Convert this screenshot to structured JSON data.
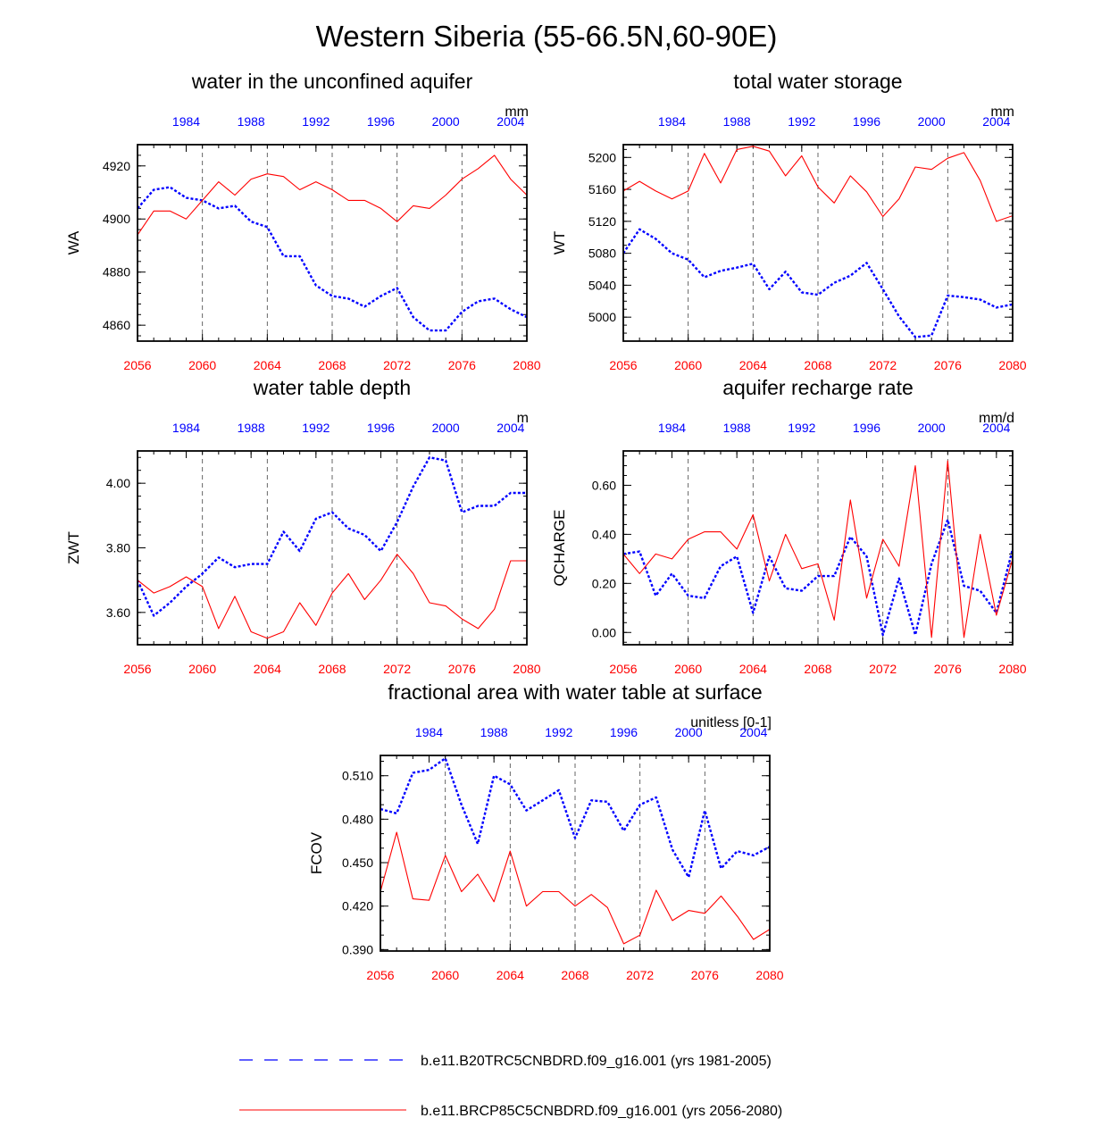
{
  "figure_title": "Western Siberia (55-66.5N,60-90E)",
  "colors": {
    "historical": "#0000ff",
    "future": "#ff0000",
    "axis": "#000000"
  },
  "legend": {
    "items": [
      {
        "label": "b.e11.B20TRC5CNBDRD.f09_g16.001 (yrs 1981-2005)",
        "color": "#0000ff",
        "style": "dashed"
      },
      {
        "label": "b.e11.BRCP85C5CNBDRD.f09_g16.001 (yrs 2056-2080)",
        "color": "#ff0000",
        "style": "solid"
      }
    ]
  },
  "chart_data": [
    {
      "id": "wa",
      "type": "line",
      "title": "water in the unconfined aquifer",
      "ylabel": "WA",
      "units": "mm",
      "ylim": [
        4854,
        4928
      ],
      "yticks": [
        4860,
        4880,
        4900,
        4920
      ],
      "ytick_labels": [
        "4860",
        "4880",
        "4900",
        "4920"
      ],
      "yminor": 5,
      "x_bottom": [
        2056,
        2057,
        2058,
        2059,
        2060,
        2061,
        2062,
        2063,
        2064,
        2065,
        2066,
        2067,
        2068,
        2069,
        2070,
        2071,
        2072,
        2073,
        2074,
        2075,
        2076,
        2077,
        2078,
        2079,
        2080
      ],
      "xticks_bottom": [
        2056,
        2060,
        2064,
        2068,
        2072,
        2076,
        2080
      ],
      "x_top": [
        1981,
        1982,
        1983,
        1984,
        1985,
        1986,
        1987,
        1988,
        1989,
        1990,
        1991,
        1992,
        1993,
        1994,
        1995,
        1996,
        1997,
        1998,
        1999,
        2000,
        2001,
        2002,
        2003,
        2004,
        2005
      ],
      "xticks_top": [
        1984,
        1988,
        1992,
        1996,
        2000,
        2004
      ],
      "series": [
        {
          "name": "b.e11.B20TRC5CNBDRD.f09_g16.001 (yrs 1981-2005)",
          "color": "#0000ff",
          "style": "dashed",
          "values": [
            4904,
            4911,
            4912,
            4908,
            4907,
            4904,
            4905,
            4899,
            4897,
            4886,
            4886,
            4875,
            4871,
            4870,
            4867,
            4871,
            4874,
            4863,
            4858,
            4858,
            4865,
            4869,
            4870,
            4866,
            4863
          ]
        },
        {
          "name": "b.e11.BRCP85C5CNBDRD.f09_g16.001 (yrs 2056-2080)",
          "color": "#ff0000",
          "style": "solid",
          "values": [
            4894,
            4903,
            4903,
            4900,
            4907,
            4914,
            4909,
            4915,
            4917,
            4916,
            4911,
            4914,
            4911,
            4907,
            4907,
            4904,
            4899,
            4905,
            4904,
            4909,
            4915,
            4919,
            4924,
            4915,
            4909
          ]
        }
      ]
    },
    {
      "id": "wt",
      "type": "line",
      "title": "total water storage",
      "ylabel": "WT",
      "units": "mm",
      "ylim": [
        4970,
        5216
      ],
      "yticks": [
        5000,
        5040,
        5080,
        5120,
        5160,
        5200
      ],
      "ytick_labels": [
        "5000",
        "5040",
        "5080",
        "5120",
        "5160",
        "5200"
      ],
      "yminor": 4,
      "x_bottom": [
        2056,
        2057,
        2058,
        2059,
        2060,
        2061,
        2062,
        2063,
        2064,
        2065,
        2066,
        2067,
        2068,
        2069,
        2070,
        2071,
        2072,
        2073,
        2074,
        2075,
        2076,
        2077,
        2078,
        2079,
        2080
      ],
      "xticks_bottom": [
        2056,
        2060,
        2064,
        2068,
        2072,
        2076,
        2080
      ],
      "x_top": [
        1981,
        1982,
        1983,
        1984,
        1985,
        1986,
        1987,
        1988,
        1989,
        1990,
        1991,
        1992,
        1993,
        1994,
        1995,
        1996,
        1997,
        1998,
        1999,
        2000,
        2001,
        2002,
        2003,
        2004,
        2005
      ],
      "xticks_top": [
        1984,
        1988,
        1992,
        1996,
        2000,
        2004
      ],
      "series": [
        {
          "name": "b.e11.B20TRC5CNBDRD.f09_g16.001 (yrs 1981-2005)",
          "color": "#0000ff",
          "style": "dashed",
          "values": [
            5080,
            5110,
            5098,
            5080,
            5072,
            5050,
            5058,
            5062,
            5067,
            5035,
            5057,
            5031,
            5028,
            5043,
            5052,
            5068,
            5035,
            5001,
            4975,
            4977,
            5027,
            5025,
            5022,
            5012,
            5016
          ]
        },
        {
          "name": "b.e11.BRCP85C5CNBDRD.f09_g16.001 (yrs 2056-2080)",
          "color": "#ff0000",
          "style": "solid",
          "values": [
            5158,
            5170,
            5158,
            5148,
            5158,
            5205,
            5168,
            5210,
            5214,
            5208,
            5177,
            5202,
            5163,
            5143,
            5177,
            5157,
            5126,
            5148,
            5188,
            5185,
            5199,
            5206,
            5171,
            5120,
            5127
          ]
        }
      ]
    },
    {
      "id": "zwt",
      "type": "line",
      "title": "water table depth",
      "ylabel": "ZWT",
      "units": "m",
      "ylim": [
        3.5,
        4.1
      ],
      "yticks": [
        3.6,
        3.8,
        4.0
      ],
      "ytick_labels": [
        "3.60",
        "3.80",
        "4.00"
      ],
      "yminor": 5,
      "x_bottom": [
        2056,
        2057,
        2058,
        2059,
        2060,
        2061,
        2062,
        2063,
        2064,
        2065,
        2066,
        2067,
        2068,
        2069,
        2070,
        2071,
        2072,
        2073,
        2074,
        2075,
        2076,
        2077,
        2078,
        2079,
        2080
      ],
      "xticks_bottom": [
        2056,
        2060,
        2064,
        2068,
        2072,
        2076,
        2080
      ],
      "x_top": [
        1981,
        1982,
        1983,
        1984,
        1985,
        1986,
        1987,
        1988,
        1989,
        1990,
        1991,
        1992,
        1993,
        1994,
        1995,
        1996,
        1997,
        1998,
        1999,
        2000,
        2001,
        2002,
        2003,
        2004,
        2005
      ],
      "xticks_top": [
        1984,
        1988,
        1992,
        1996,
        2000,
        2004
      ],
      "series": [
        {
          "name": "b.e11.B20TRC5CNBDRD.f09_g16.001 (yrs 1981-2005)",
          "color": "#0000ff",
          "style": "dashed",
          "values": [
            3.7,
            3.59,
            3.63,
            3.68,
            3.72,
            3.77,
            3.74,
            3.75,
            3.75,
            3.85,
            3.79,
            3.89,
            3.91,
            3.86,
            3.84,
            3.79,
            3.88,
            3.99,
            4.08,
            4.07,
            3.91,
            3.93,
            3.93,
            3.97,
            3.97
          ]
        },
        {
          "name": "b.e11.BRCP85C5CNBDRD.f09_g16.001 (yrs 2056-2080)",
          "color": "#ff0000",
          "style": "solid",
          "values": [
            3.7,
            3.66,
            3.68,
            3.71,
            3.68,
            3.55,
            3.65,
            3.54,
            3.52,
            3.54,
            3.63,
            3.56,
            3.66,
            3.72,
            3.64,
            3.7,
            3.78,
            3.72,
            3.63,
            3.62,
            3.58,
            3.55,
            3.61,
            3.76,
            3.76
          ]
        }
      ]
    },
    {
      "id": "qcharge",
      "type": "line",
      "title": "aquifer recharge rate",
      "ylabel": "QCHARGE",
      "units": "mm/d",
      "ylim": [
        -0.05,
        0.74
      ],
      "yticks": [
        0.0,
        0.2,
        0.4,
        0.6
      ],
      "ytick_labels": [
        "0.00",
        "0.20",
        "0.40",
        "0.60"
      ],
      "yminor": 5,
      "x_bottom": [
        2056,
        2057,
        2058,
        2059,
        2060,
        2061,
        2062,
        2063,
        2064,
        2065,
        2066,
        2067,
        2068,
        2069,
        2070,
        2071,
        2072,
        2073,
        2074,
        2075,
        2076,
        2077,
        2078,
        2079,
        2080
      ],
      "xticks_bottom": [
        2056,
        2060,
        2064,
        2068,
        2072,
        2076,
        2080
      ],
      "x_top": [
        1981,
        1982,
        1983,
        1984,
        1985,
        1986,
        1987,
        1988,
        1989,
        1990,
        1991,
        1992,
        1993,
        1994,
        1995,
        1996,
        1997,
        1998,
        1999,
        2000,
        2001,
        2002,
        2003,
        2004,
        2005
      ],
      "xticks_top": [
        1984,
        1988,
        1992,
        1996,
        2000,
        2004
      ],
      "series": [
        {
          "name": "b.e11.B20TRC5CNBDRD.f09_g16.001 (yrs 1981-2005)",
          "color": "#0000ff",
          "style": "dashed",
          "values": [
            0.32,
            0.33,
            0.15,
            0.24,
            0.15,
            0.14,
            0.27,
            0.31,
            0.08,
            0.31,
            0.18,
            0.17,
            0.23,
            0.23,
            0.39,
            0.31,
            -0.01,
            0.22,
            -0.01,
            0.28,
            0.46,
            0.19,
            0.17,
            0.08,
            0.34
          ]
        },
        {
          "name": "b.e11.BRCP85C5CNBDRD.f09_g16.001 (yrs 2056-2080)",
          "color": "#ff0000",
          "style": "solid",
          "values": [
            0.32,
            0.24,
            0.32,
            0.3,
            0.38,
            0.41,
            0.41,
            0.34,
            0.48,
            0.21,
            0.4,
            0.26,
            0.28,
            0.05,
            0.54,
            0.14,
            0.38,
            0.27,
            0.68,
            -0.02,
            0.7,
            -0.02,
            0.4,
            0.07,
            0.3
          ]
        }
      ]
    },
    {
      "id": "fcov",
      "type": "line",
      "title": "fractional area with water table at surface",
      "ylabel": "FCOV",
      "units": "unitless [0-1]",
      "ylim": [
        0.389,
        0.524
      ],
      "yticks": [
        0.39,
        0.42,
        0.45,
        0.48,
        0.51
      ],
      "ytick_labels": [
        "0.390",
        "0.420",
        "0.450",
        "0.480",
        "0.510"
      ],
      "yminor": 3,
      "x_bottom": [
        2056,
        2057,
        2058,
        2059,
        2060,
        2061,
        2062,
        2063,
        2064,
        2065,
        2066,
        2067,
        2068,
        2069,
        2070,
        2071,
        2072,
        2073,
        2074,
        2075,
        2076,
        2077,
        2078,
        2079,
        2080
      ],
      "xticks_bottom": [
        2056,
        2060,
        2064,
        2068,
        2072,
        2076,
        2080
      ],
      "x_top": [
        1981,
        1982,
        1983,
        1984,
        1985,
        1986,
        1987,
        1988,
        1989,
        1990,
        1991,
        1992,
        1993,
        1994,
        1995,
        1996,
        1997,
        1998,
        1999,
        2000,
        2001,
        2002,
        2003,
        2004,
        2005
      ],
      "xticks_top": [
        1984,
        1988,
        1992,
        1996,
        2000,
        2004
      ],
      "series": [
        {
          "name": "b.e11.B20TRC5CNBDRD.f09_g16.001 (yrs 1981-2005)",
          "color": "#0000ff",
          "style": "dashed",
          "values": [
            0.487,
            0.484,
            0.512,
            0.514,
            0.522,
            0.49,
            0.463,
            0.51,
            0.504,
            0.486,
            0.493,
            0.5,
            0.467,
            0.493,
            0.492,
            0.472,
            0.49,
            0.495,
            0.459,
            0.44,
            0.486,
            0.446,
            0.458,
            0.455,
            0.461
          ]
        },
        {
          "name": "b.e11.BRCP85C5CNBDRD.f09_g16.001 (yrs 2056-2080)",
          "color": "#ff0000",
          "style": "solid",
          "values": [
            0.43,
            0.471,
            0.425,
            0.424,
            0.455,
            0.43,
            0.442,
            0.423,
            0.458,
            0.42,
            0.43,
            0.43,
            0.42,
            0.428,
            0.419,
            0.394,
            0.4,
            0.431,
            0.41,
            0.417,
            0.415,
            0.427,
            0.413,
            0.397,
            0.404
          ]
        }
      ]
    }
  ]
}
